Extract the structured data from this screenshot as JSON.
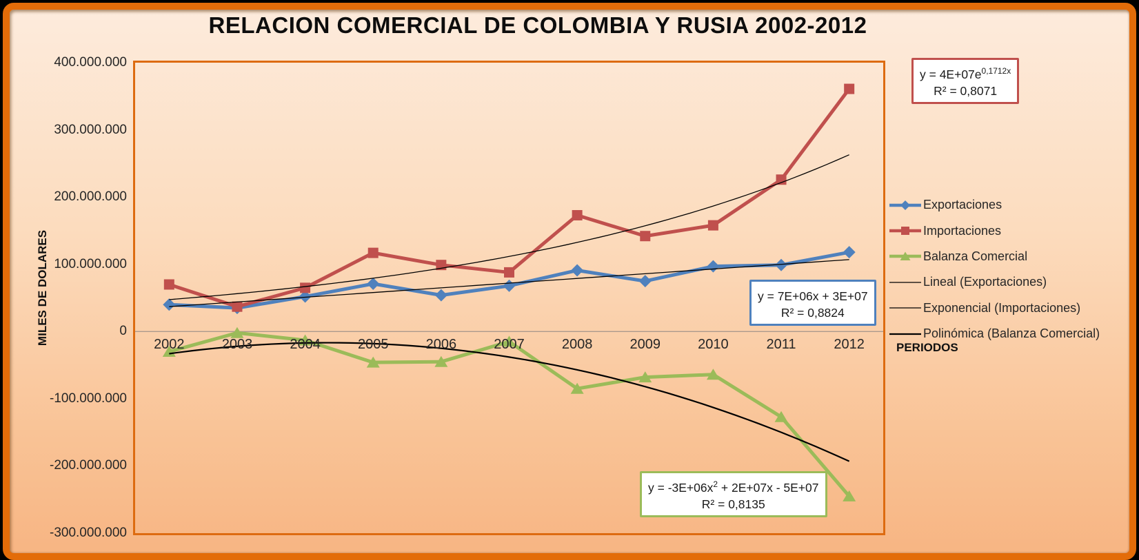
{
  "chart_data": {
    "type": "line",
    "title": "RELACION COMERCIAL DE COLOMBIA Y RUSIA 2002-2012",
    "xlabel": "PERIODOS",
    "ylabel": "MILES DE DOLARES",
    "categories": [
      "2002",
      "2003",
      "2004",
      "2005",
      "2006",
      "2007",
      "2008",
      "2009",
      "2010",
      "2011",
      "2012"
    ],
    "y_axis": {
      "min": -300000000,
      "max": 400000000,
      "step": 100000000,
      "tick_values_millions": [
        400,
        300,
        200,
        100,
        0,
        -100,
        -200,
        -300
      ],
      "tick_labels": [
        "400.000.000",
        "300.000.000",
        "200.000.000",
        "100.000.000",
        "0",
        "-100.000.000",
        "-200.000.000",
        "-300.000.000"
      ]
    },
    "grid": "zero-line-only",
    "legend_position": "right",
    "series": [
      {
        "name": "Exportaciones",
        "color": "#4F81BD",
        "marker": "diamond",
        "values": [
          40000000,
          35000000,
          52000000,
          71000000,
          54000000,
          68000000,
          91000000,
          75000000,
          97000000,
          99000000,
          118000000
        ]
      },
      {
        "name": "Importaciones",
        "color": "#C0504D",
        "marker": "square",
        "values": [
          70000000,
          37000000,
          65000000,
          117000000,
          99000000,
          88000000,
          173000000,
          142000000,
          158000000,
          226000000,
          361000000
        ]
      },
      {
        "name": "Balanza Comercial",
        "color": "#9BBB59",
        "marker": "triangle",
        "values": [
          -30000000,
          -2000000,
          -13000000,
          -46000000,
          -45000000,
          -15000000,
          -85000000,
          -68000000,
          -64000000,
          -127000000,
          -245000000
        ]
      }
    ],
    "trendlines": [
      {
        "name": "Lineal (Exportaciones)",
        "type": "linear",
        "a_millions": 7,
        "b_millions": 30,
        "color": "#000000",
        "width": 1.3
      },
      {
        "name": "Exponencial (Importaciones)",
        "type": "exponential",
        "a_millions": 40,
        "k": 0.1712,
        "color": "#000000",
        "width": 1.3
      },
      {
        "name": "Polinómica (Balanza Comercial)",
        "type": "polynomial",
        "a_millions": -3,
        "b_millions": 20,
        "c_millions": -50,
        "color": "#000000",
        "width": 2.2
      }
    ]
  },
  "legend": {
    "items": [
      {
        "id": "exportaciones",
        "label": "Exportaciones",
        "kind": "series",
        "color": "#4F81BD",
        "marker": "diamond"
      },
      {
        "id": "importaciones",
        "label": "Importaciones",
        "kind": "series",
        "color": "#C0504D",
        "marker": "square"
      },
      {
        "id": "balanza-comercial",
        "label": "Balanza Comercial",
        "kind": "series",
        "color": "#9BBB59",
        "marker": "triangle"
      },
      {
        "id": "lineal-exportaciones",
        "label": "Lineal (Exportaciones)",
        "kind": "trend",
        "color": "#000000",
        "width": 1.3
      },
      {
        "id": "exponencial-importaciones",
        "label": "Exponencial (Importaciones)",
        "kind": "trend",
        "color": "#000000",
        "width": 1.3
      },
      {
        "id": "polinomica-balanza-comercial",
        "label": "Polinómica (Balanza Comercial)",
        "kind": "trend",
        "color": "#000000",
        "width": 2.2
      }
    ]
  },
  "annotations": {
    "exp_box": {
      "line1_prefix": "y = 4E+07e",
      "line1_sup": "0,1712x",
      "line1_suffix": "",
      "line2": "R² = 0,8071",
      "border_color": "#C0504D"
    },
    "lin_box": {
      "line1_prefix": "y = 7E+06x + 3E+07",
      "line1_sup": "",
      "line1_suffix": "",
      "line2": "R² = 0,8824",
      "border_color": "#4F81BD"
    },
    "poly_box": {
      "line1_prefix": "y = -3E+06x",
      "line1_sup": "2",
      "line1_suffix": " + 2E+07x - 5E+07",
      "line2": "R² = 0,8135",
      "border_color": "#9BBB59"
    }
  },
  "colors": {
    "frame_border": "#E36C09",
    "plot_border": "#DD6B10",
    "axis_line": "#AB9A8C",
    "background_top": "#FDEBDC",
    "background_bottom": "#F7B583",
    "series_blue": "#4F81BD",
    "series_red": "#C0504D",
    "series_green": "#9BBB59",
    "trendline_black": "#000000"
  }
}
